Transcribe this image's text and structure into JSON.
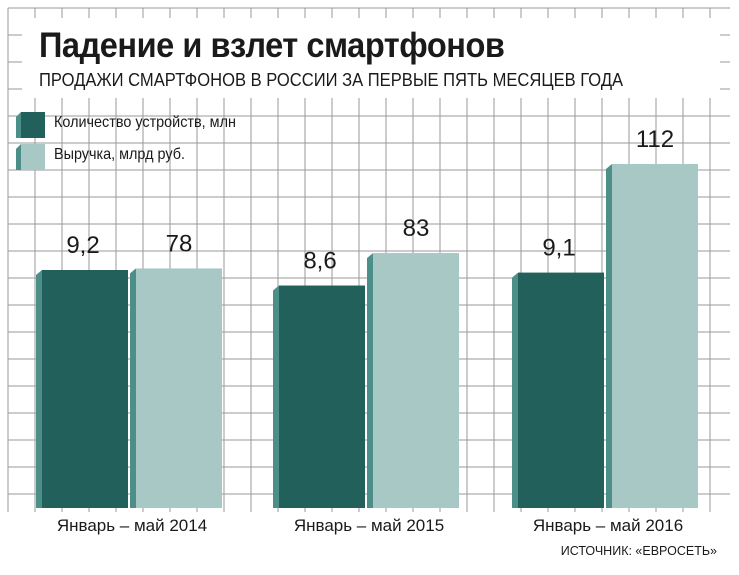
{
  "header": {
    "title": "Падение и взлет смартфонов",
    "subtitle": "ПРОДАЖИ СМАРТФОНОВ В РОССИИ ЗА ПЕРВЫЕ ПЯТЬ МЕСЯЦЕВ ГОДА"
  },
  "source": "ИСТОЧНИК: «ЕВРОСЕТЬ»",
  "colors": {
    "devices_bar": "#21605b",
    "devices_side": "#4c8f88",
    "revenue_bar": "#a7c8c5",
    "revenue_side": "#4c8f88",
    "grid": "#9a9a9a"
  },
  "chart_data": {
    "type": "bar",
    "categories": [
      "Январь – май 2014",
      "Январь – май 2015",
      "Январь – май 2016"
    ],
    "series": [
      {
        "name": "Количество устройств, млн",
        "values": [
          9.2,
          8.6,
          9.1
        ],
        "labels": [
          "9,2",
          "8,6",
          "9,1"
        ]
      },
      {
        "name": "Выручка, млрд руб.",
        "values": [
          78,
          83,
          112
        ],
        "labels": [
          "78",
          "83",
          "112"
        ]
      }
    ],
    "grid": true,
    "legend": "top-left"
  }
}
